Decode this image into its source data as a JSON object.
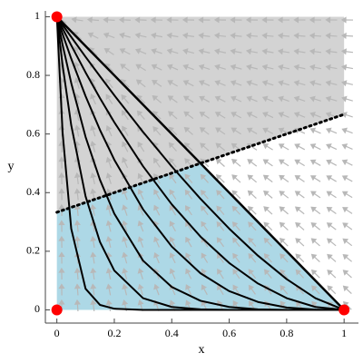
{
  "chart_data": {
    "type": "phase-portrait",
    "xlabel": "x",
    "ylabel": "y",
    "xlim": [
      -0.04,
      1.05
    ],
    "ylim": [
      -0.045,
      1.02
    ],
    "xticks": [
      0,
      0.2,
      0.4,
      0.6,
      0.8,
      1
    ],
    "yticks": [
      0,
      0.2,
      0.4,
      0.6,
      0.8,
      1
    ],
    "regions": [
      {
        "color": "#d3d3d3",
        "x": [
          0,
          1,
          1,
          0.5,
          0
        ],
        "y": [
          1,
          1,
          0.667,
          0.5,
          0.333
        ]
      },
      {
        "color": "#add8e6",
        "x": [
          0,
          0.5,
          1,
          0
        ],
        "y": [
          0.333,
          0.5,
          0,
          0
        ]
      }
    ],
    "lines": [
      {
        "color": "#000000",
        "style": "solid",
        "x": [
          0,
          1
        ],
        "y": [
          1,
          0
        ]
      },
      {
        "color": "#000000",
        "style": "dotted",
        "x": [
          0,
          1
        ],
        "y": [
          0.333,
          0.667
        ]
      }
    ],
    "x": [
      0,
      0.02,
      0.05,
      0.1,
      0.15,
      0.2,
      0.3,
      0.4,
      0.5,
      0.6,
      0.7,
      0.8,
      0.9,
      1
    ],
    "series": [
      {
        "color": "#000000",
        "values": [
          1,
          0.972,
          0.931,
          0.863,
          0.797,
          0.732,
          0.607,
          0.489,
          0.379,
          0.277,
          0.185,
          0.105,
          0.04,
          0
        ]
      },
      {
        "color": "#000000",
        "values": [
          1,
          0.96,
          0.9025,
          0.81,
          0.7225,
          0.64,
          0.49,
          0.36,
          0.25,
          0.16,
          0.09,
          0.04,
          0.01,
          0
        ]
      },
      {
        "color": "#000000",
        "values": [
          1,
          0.941,
          0.857,
          0.729,
          0.614,
          0.512,
          0.343,
          0.216,
          0.125,
          0.064,
          0.027,
          0.008,
          0.001,
          0
        ]
      },
      {
        "color": "#000000",
        "values": [
          1,
          0.904,
          0.774,
          0.59,
          0.444,
          0.328,
          0.168,
          0.078,
          0.031,
          0.01,
          0.002,
          0,
          0,
          0
        ]
      },
      {
        "color": "#000000",
        "values": [
          1,
          0.834,
          0.63,
          0.387,
          0.232,
          0.134,
          0.04,
          0.01,
          0.002,
          0,
          0,
          0,
          0,
          0
        ]
      },
      {
        "color": "#000000",
        "values": [
          1,
          0.604,
          0.277,
          0.072,
          0.017,
          0.004,
          0,
          0,
          0,
          0,
          0,
          0,
          0,
          0
        ]
      }
    ],
    "points": {
      "color": "#ff0000",
      "x": [
        0,
        0,
        1
      ],
      "y": [
        1,
        0,
        0
      ]
    }
  }
}
